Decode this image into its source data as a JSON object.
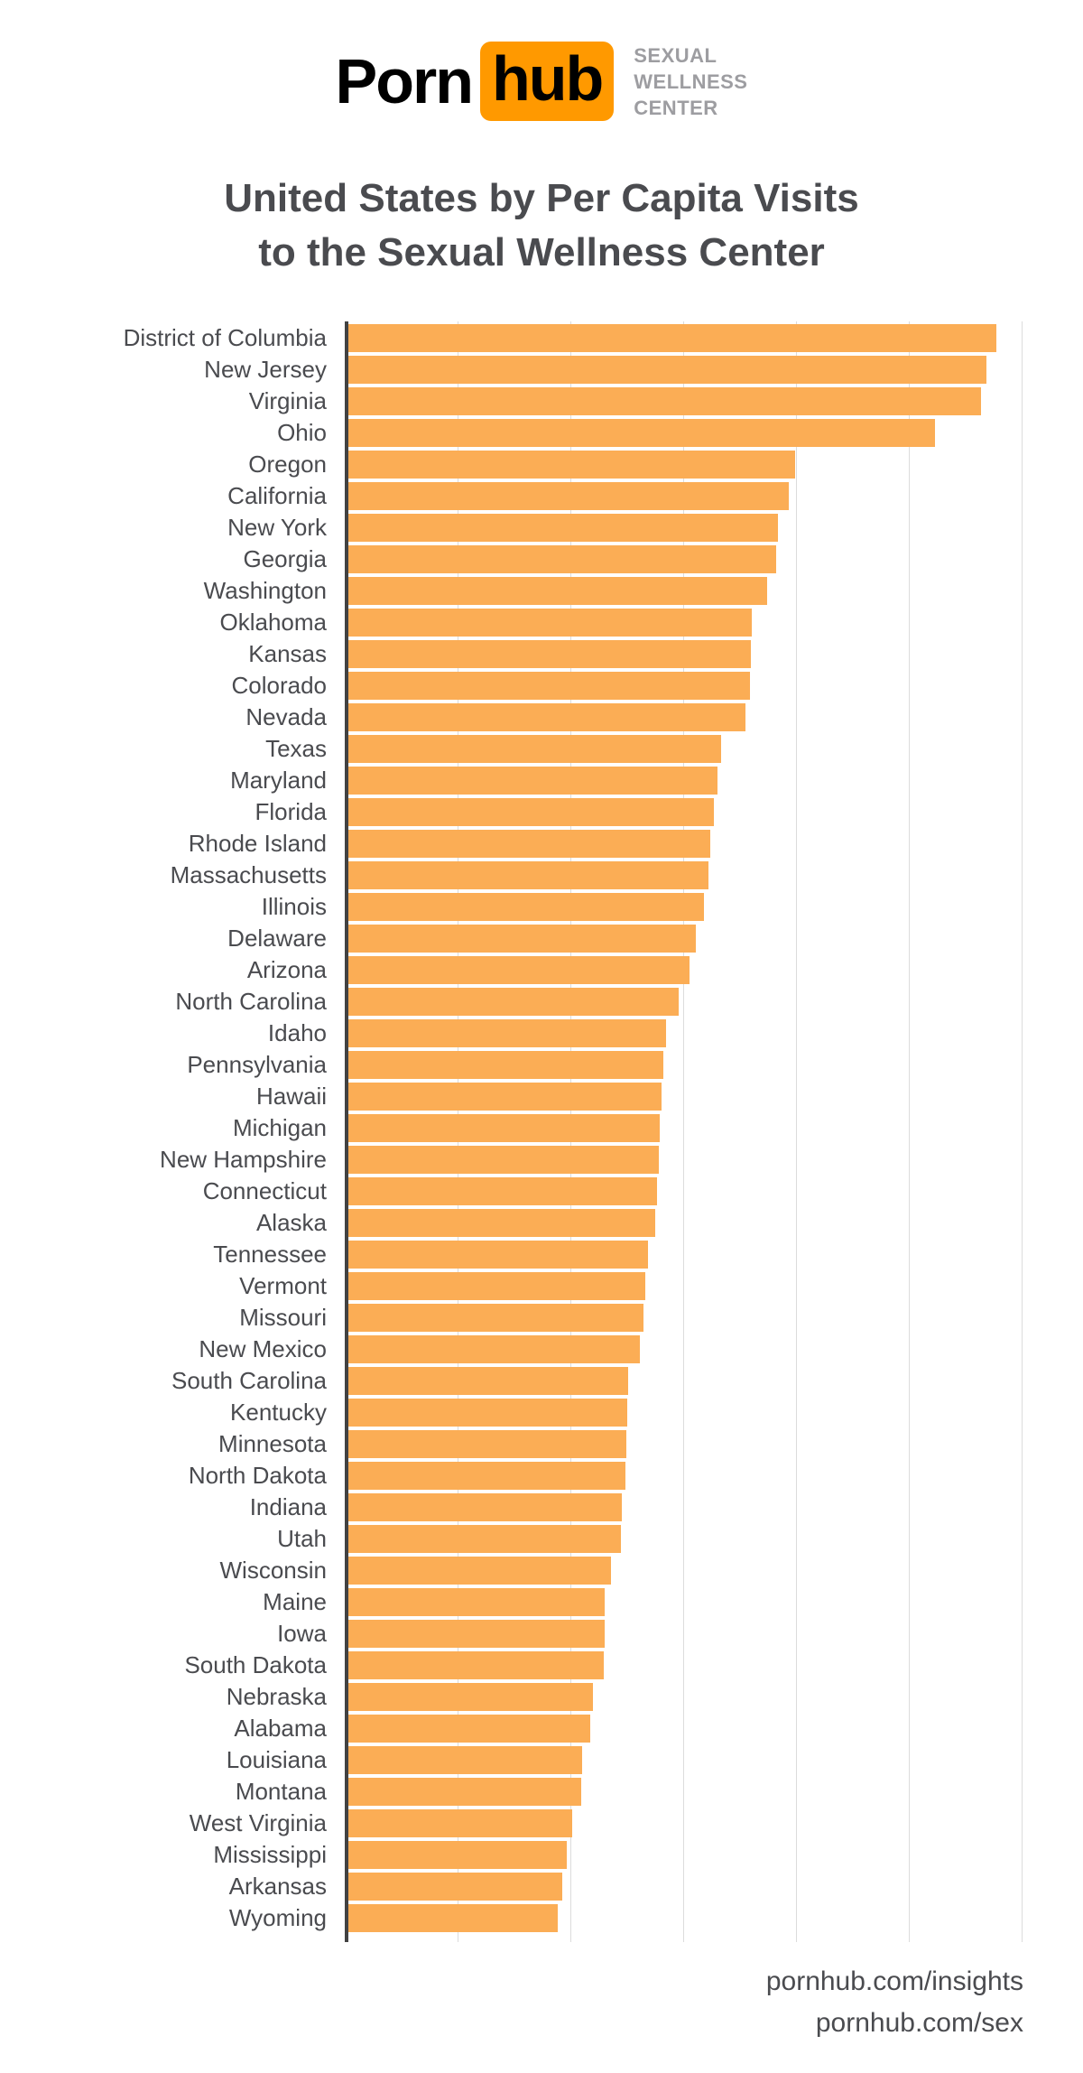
{
  "logo": {
    "brand_left": "Porn",
    "brand_right": "hub",
    "subtitle_lines": [
      "SEXUAL",
      "WELLNESS",
      "CENTER"
    ]
  },
  "title": {
    "line1": "United States by Per Capita Visits",
    "line2": "to the Sexual Wellness Center"
  },
  "footer": {
    "line1": "pornhub.com/insights",
    "line2": "pornhub.com/sex"
  },
  "colors": {
    "bar_orange": "#FBAD55",
    "logo_orange": "#FF9900",
    "axis_gray": "#424242",
    "grid_gray": "#DCDCDC",
    "text_dark": "#4A4B4F",
    "sub_gray": "#9D9DA1"
  },
  "chart_data": {
    "type": "bar",
    "orientation": "horizontal",
    "title": "United States by Per Capita Visits to the Sexual Wellness Center",
    "value_scale": "percent of longest bar; no numeric axis labels are shown in the image (District of Columbia = 100)",
    "legend": false,
    "x_axis": {
      "tick_labels_visible": false,
      "gridline_values": [
        17.4,
        34.8,
        52.2,
        69.6,
        87.0,
        104.4
      ],
      "max": 108.5
    },
    "categories": [
      "District of Columbia",
      "New Jersey",
      "Virginia",
      "Ohio",
      "Oregon",
      "California",
      "New York",
      "Georgia",
      "Washington",
      "Oklahoma",
      "Kansas",
      "Colorado",
      "Nevada",
      "Texas",
      "Maryland",
      "Florida",
      "Rhode Island",
      "Massachusetts",
      "Illinois",
      "Delaware",
      "Arizona",
      "North Carolina",
      "Idaho",
      "Pennsylvania",
      "Hawaii",
      "Michigan",
      "New Hampshire",
      "Connecticut",
      "Alaska",
      "Tennessee",
      "Vermont",
      "Missouri",
      "New Mexico",
      "South Carolina",
      "Kentucky",
      "Minnesota",
      "North Dakota",
      "Indiana",
      "Utah",
      "Wisconsin",
      "Maine",
      "Iowa",
      "South Dakota",
      "Nebraska",
      "Alabama",
      "Louisiana",
      "Montana",
      "West Virginia",
      "Mississippi",
      "Arkansas",
      "Wyoming"
    ],
    "values": [
      100,
      98.4,
      97.6,
      90.5,
      68.9,
      67.9,
      66.3,
      66.0,
      64.6,
      62.2,
      62.1,
      62.0,
      61.3,
      57.5,
      56.9,
      56.4,
      55.9,
      55.6,
      54.9,
      53.6,
      52.6,
      50.9,
      49.0,
      48.6,
      48.3,
      48.0,
      47.9,
      47.6,
      47.4,
      46.2,
      45.8,
      45.5,
      45.0,
      43.2,
      43.0,
      42.9,
      42.7,
      42.2,
      42.0,
      40.5,
      39.6,
      39.5,
      39.4,
      37.8,
      37.3,
      36.0,
      35.9,
      34.5,
      33.7,
      33.0,
      32.3
    ]
  }
}
